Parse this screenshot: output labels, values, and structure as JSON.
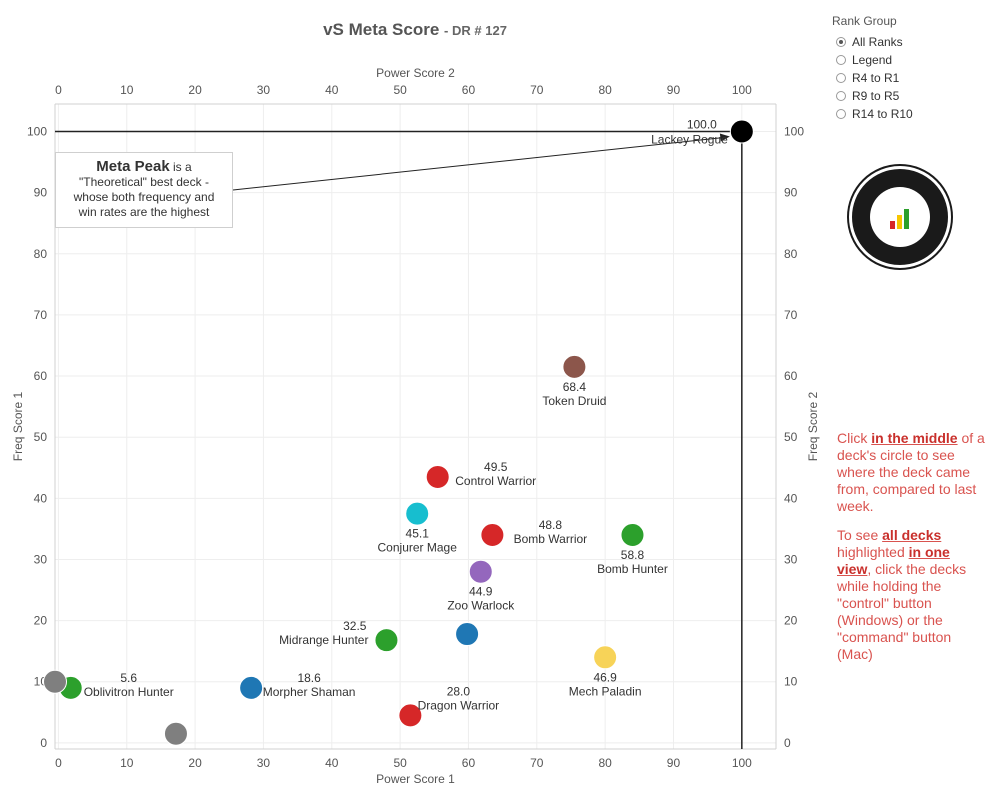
{
  "title": {
    "main": "vS Meta Score",
    "sub": "DR # 127"
  },
  "legend": {
    "title": "Rank Group",
    "items": [
      {
        "label": "All Ranks",
        "selected": true
      },
      {
        "label": "Legend",
        "selected": false
      },
      {
        "label": "R4 to R1",
        "selected": false
      },
      {
        "label": "R9 to R5",
        "selected": false
      },
      {
        "label": "R14 to R10",
        "selected": false
      }
    ]
  },
  "annotation": {
    "bold": "Meta Peak",
    "rest_line1": " is a",
    "line2": "\"Theoretical\" best deck -",
    "line3": "whose both frequency and",
    "line4": "win rates are the highest"
  },
  "side_text": {
    "p1_a": "Click ",
    "p1_link": "in the middle",
    "p1_b": " of a deck's circle to see where the deck came from, compared to last week.",
    "p2_a": "To see ",
    "p2_link1": "all decks",
    "p2_b": " highlighted ",
    "p2_link2": "in one view",
    "p2_c": ", click the decks while holding the \"control\" button (Windows) or the \"command\" button (Mac)"
  },
  "chart_data": {
    "type": "scatter",
    "xlabel_bottom": "Power Score 1",
    "xlabel_top": "Power Score 2",
    "ylabel_left": "Freq Score 1",
    "ylabel_right": "Freq Score 2",
    "xticks": [
      0,
      10,
      20,
      30,
      40,
      50,
      60,
      70,
      80,
      90,
      100
    ],
    "yticks": [
      0,
      10,
      20,
      30,
      40,
      50,
      60,
      70,
      80,
      90,
      100
    ],
    "xlim": [
      -0.5,
      105
    ],
    "ylim": [
      -1,
      104.5
    ],
    "grid": true,
    "points": [
      {
        "name": "Lackey Rogue",
        "score": "100.0",
        "x": 100,
        "y": 100,
        "color": "#000000",
        "label_pos": "left"
      },
      {
        "name": "Token Druid",
        "score": "68.4",
        "x": 75.5,
        "y": 61.5,
        "color": "#8c564b",
        "label_pos": "below"
      },
      {
        "name": "Control Warrior",
        "score": "49.5",
        "x": 55.5,
        "y": 43.5,
        "color": "#d62728",
        "label_pos": "right"
      },
      {
        "name": "Conjurer Mage",
        "score": "45.1",
        "x": 52.5,
        "y": 37.5,
        "color": "#17becf",
        "label_pos": "below"
      },
      {
        "name": "Bomb Warrior",
        "score": "48.8",
        "x": 63.5,
        "y": 34,
        "color": "#d62728",
        "label_pos": "right"
      },
      {
        "name": "Bomb Hunter",
        "score": "58.8",
        "x": 84,
        "y": 34,
        "color": "#2ca02c",
        "label_pos": "below"
      },
      {
        "name": "Zoo Warlock",
        "score": "44.9",
        "x": 61.8,
        "y": 28,
        "color": "#9467bd",
        "label_pos": "below"
      },
      {
        "name": "Midrange Hunter",
        "score": "32.5",
        "x": 48,
        "y": 16.8,
        "color": "#2ca02c",
        "label_pos": "left"
      },
      {
        "name": "",
        "score": "",
        "x": 59.8,
        "y": 17.8,
        "color": "#1f77b4",
        "label_pos": "none"
      },
      {
        "name": "Mech Paladin",
        "score": "46.9",
        "x": 80,
        "y": 14,
        "color": "#f7d358",
        "label_pos": "below"
      },
      {
        "name": "Dragon Warrior",
        "score": "28.0",
        "x": 51.5,
        "y": 4.5,
        "color": "#d62728",
        "label_pos": "above"
      },
      {
        "name": "Morpher Shaman",
        "score": "18.6",
        "x": 28.2,
        "y": 9,
        "color": "#1f77b4",
        "label_pos": "right"
      },
      {
        "name": "Oblivitron Hunter",
        "score": "5.6",
        "x": 1.8,
        "y": 9,
        "color": "#2ca02c",
        "label_pos": "right"
      },
      {
        "name": "",
        "score": "",
        "x": 17.2,
        "y": 1.5,
        "color": "#7f7f7f",
        "label_pos": "none"
      },
      {
        "name": "",
        "score": "",
        "x": -0.5,
        "y": 10,
        "color": "#7f7f7f",
        "label_pos": "none"
      }
    ]
  }
}
